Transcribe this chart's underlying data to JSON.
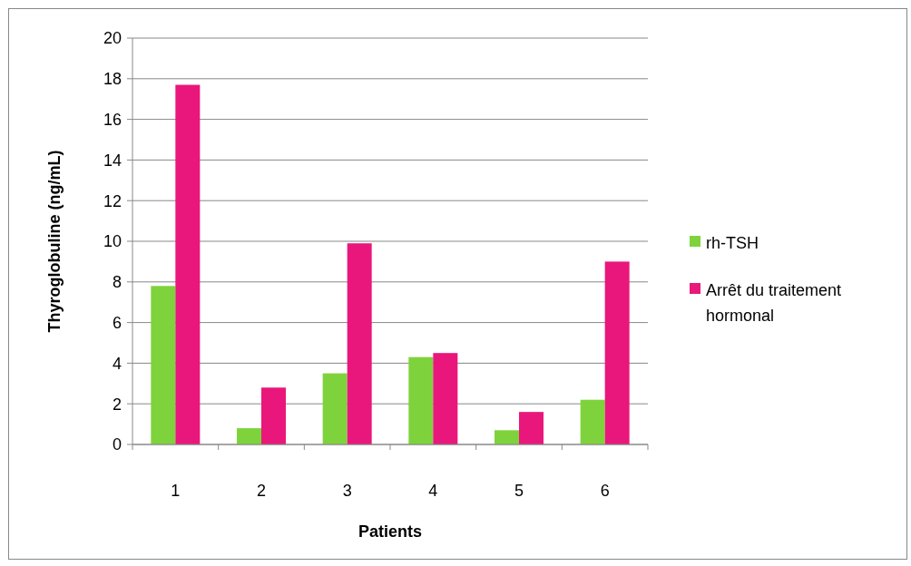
{
  "chart_data": {
    "type": "bar",
    "xlabel": "Patients",
    "ylabel": "Thyroglobuline (ng/mL)",
    "categories": [
      "1",
      "2",
      "3",
      "4",
      "5",
      "6"
    ],
    "series": [
      {
        "name": "rh-TSH",
        "color": "#7ed33c",
        "values": [
          7.8,
          0.8,
          3.5,
          4.3,
          0.7,
          2.2
        ]
      },
      {
        "name": "Arrêt du traitement hormonal",
        "color": "#e9177b",
        "values": [
          17.7,
          2.8,
          9.9,
          4.5,
          1.6,
          9.0
        ]
      }
    ],
    "ylim": [
      0,
      20
    ],
    "yticks": [
      0,
      2,
      4,
      6,
      8,
      10,
      12,
      14,
      16,
      18,
      20
    ],
    "grid": "y",
    "legend": "right"
  }
}
